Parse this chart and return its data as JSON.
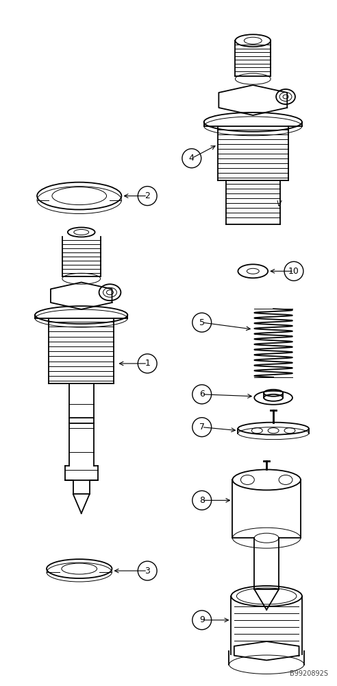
{
  "bg_color": "#ffffff",
  "label_color": "#000000",
  "fig_width": 4.92,
  "fig_height": 10.0,
  "dpi": 100,
  "watermark": "B9920892S"
}
